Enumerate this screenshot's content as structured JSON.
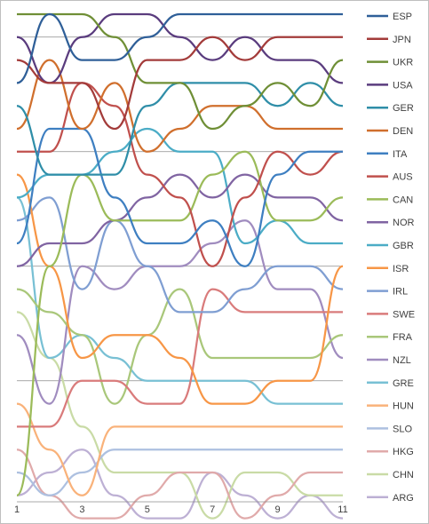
{
  "chart_data": {
    "type": "line",
    "title": "",
    "xlabel": "",
    "ylabel": "",
    "x_ticks": [
      "1",
      "3",
      "5",
      "7",
      "9",
      "11"
    ],
    "x": [
      1,
      2,
      3,
      4,
      5,
      6,
      7,
      8,
      9,
      10,
      11
    ],
    "ylim": [
      1,
      22
    ],
    "y_inverted": true,
    "grid": "horizontal",
    "legend_position": "right",
    "series": [
      {
        "name": "ESP",
        "color": "#2f5f98",
        "values": [
          4,
          1,
          3,
          3,
          2,
          1,
          1,
          1,
          1,
          1,
          1
        ]
      },
      {
        "name": "JPN",
        "color": "#a33b3a",
        "values": [
          3,
          4,
          4,
          6,
          3,
          3,
          2,
          3,
          2,
          2,
          2
        ]
      },
      {
        "name": "UKR",
        "color": "#6f8f36",
        "values": [
          1,
          1,
          1,
          2,
          4,
          4,
          6,
          5,
          4,
          5,
          3
        ]
      },
      {
        "name": "USA",
        "color": "#5a3c7e",
        "values": [
          2,
          4,
          2,
          1,
          1,
          2,
          3,
          2,
          3,
          3,
          4
        ]
      },
      {
        "name": "GER",
        "color": "#2f8ea8",
        "values": [
          5,
          8,
          8,
          8,
          5,
          4,
          4,
          4,
          5,
          4,
          5
        ]
      },
      {
        "name": "DEN",
        "color": "#d06f2d",
        "values": [
          6,
          3,
          6,
          4,
          7,
          6,
          5,
          5,
          6,
          6,
          6
        ]
      },
      {
        "name": "ITA",
        "color": "#3e7fc1",
        "values": [
          11,
          6,
          6,
          9,
          11,
          11,
          10,
          12,
          8,
          7,
          7
        ]
      },
      {
        "name": "AUS",
        "color": "#c0504d",
        "values": [
          7,
          7,
          4,
          5,
          8,
          9,
          12,
          9,
          7,
          8,
          7
        ]
      },
      {
        "name": "CAN",
        "color": "#9bbb59",
        "values": [
          22,
          12,
          8,
          10,
          10,
          10,
          8,
          7,
          10,
          10,
          9
        ]
      },
      {
        "name": "NOR",
        "color": "#8064a2",
        "values": [
          12,
          11,
          11,
          10,
          9,
          8,
          9,
          8,
          9,
          9,
          10
        ]
      },
      {
        "name": "GBR",
        "color": "#4bacc6",
        "values": [
          9,
          8,
          8,
          7,
          6,
          7,
          7,
          11,
          10,
          11,
          11
        ]
      },
      {
        "name": "ISR",
        "color": "#f79646",
        "values": [
          8,
          12,
          16,
          15,
          15,
          16,
          18,
          18,
          17,
          17,
          12
        ]
      },
      {
        "name": "IRL",
        "color": "#7f9ed2",
        "values": [
          10,
          9,
          13,
          10,
          12,
          14,
          14,
          13,
          12,
          12,
          13
        ]
      },
      {
        "name": "SWE",
        "color": "#d97b7b",
        "values": [
          19,
          19,
          17,
          17,
          18,
          18,
          13,
          14,
          14,
          14,
          14
        ]
      },
      {
        "name": "FRA",
        "color": "#a9c77a",
        "values": [
          13,
          14,
          15,
          18,
          15,
          13,
          16,
          16,
          16,
          16,
          15
        ]
      },
      {
        "name": "NZL",
        "color": "#a08cbf",
        "values": [
          15,
          18,
          12,
          13,
          12,
          12,
          11,
          10,
          13,
          13,
          16
        ]
      },
      {
        "name": "GRE",
        "color": "#78c0d4",
        "values": [
          9,
          16,
          15,
          16,
          17,
          17,
          17,
          17,
          18,
          18,
          18
        ]
      },
      {
        "name": "HUN",
        "color": "#f9b27a",
        "values": [
          18,
          20,
          22,
          19,
          19,
          19,
          19,
          19,
          19,
          19,
          19
        ]
      },
      {
        "name": "SLO",
        "color": "#adc0e0",
        "values": [
          21,
          22,
          21,
          20,
          20,
          20,
          20,
          20,
          20,
          20,
          20
        ]
      },
      {
        "name": "HKG",
        "color": "#e0aaaa",
        "values": [
          20,
          22,
          23,
          23,
          22,
          21,
          21,
          23,
          22,
          21,
          21
        ]
      },
      {
        "name": "CHN",
        "color": "#c9dba6",
        "values": [
          14,
          16,
          19,
          21,
          21,
          21,
          23,
          21,
          21,
          22,
          22
        ]
      },
      {
        "name": "ARG",
        "color": "#bdb0d4",
        "values": [
          22,
          21,
          20,
          22,
          23,
          23,
          21,
          22,
          23,
          22,
          23
        ]
      }
    ]
  }
}
